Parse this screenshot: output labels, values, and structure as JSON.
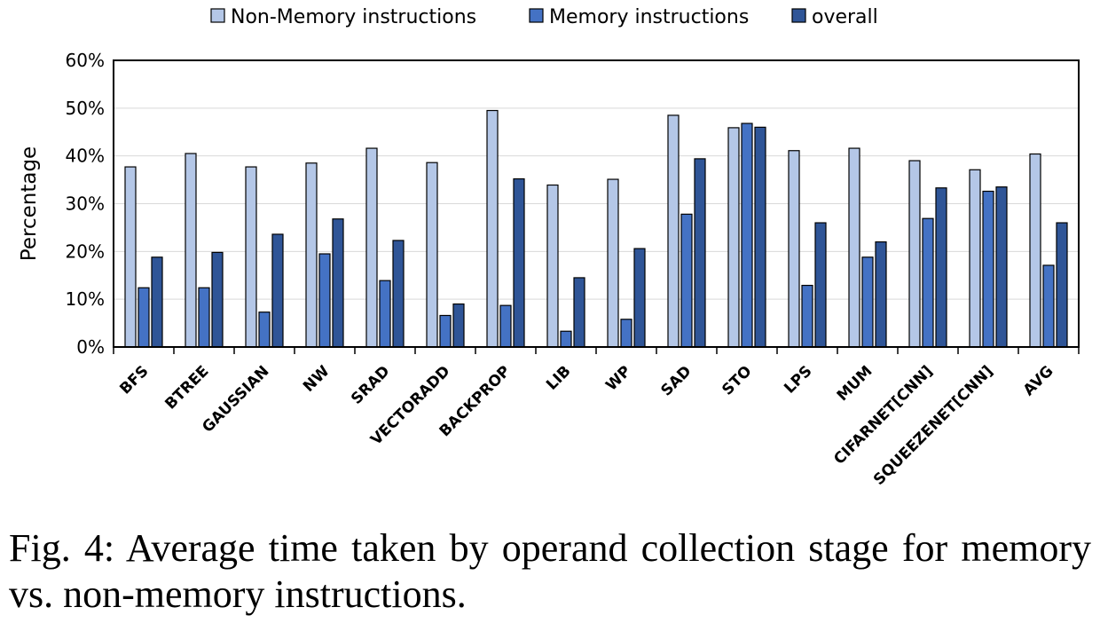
{
  "chart_data": {
    "type": "bar",
    "title": "",
    "xlabel": "",
    "ylabel": "Percentage",
    "ylim": [
      0,
      60
    ],
    "yticks": [
      "0%",
      "10%",
      "20%",
      "30%",
      "40%",
      "50%",
      "60%"
    ],
    "grid": true,
    "legend_position": "top",
    "categories": [
      "BFS",
      "BTREE",
      "GAUSSIAN",
      "NW",
      "SRAD",
      "VECTORADD",
      "BACKPROP",
      "LIB",
      "WP",
      "SAD",
      "STO",
      "LPS",
      "MUM",
      "CIFARNET[CNN]",
      "SQUEEZENET[CNN]",
      "AVG"
    ],
    "series": [
      {
        "name": "Non-Memory instructions",
        "color": "#b4c7e7",
        "values": [
          37.7,
          40.5,
          37.7,
          38.5,
          41.6,
          38.6,
          49.5,
          33.9,
          35.1,
          48.5,
          45.9,
          41.1,
          41.6,
          39.0,
          37.1,
          40.4
        ]
      },
      {
        "name": "Memory instructions",
        "color": "#4472c4",
        "values": [
          12.4,
          12.4,
          7.3,
          19.5,
          13.9,
          6.6,
          8.7,
          3.3,
          5.8,
          27.8,
          46.8,
          12.9,
          18.8,
          26.9,
          32.6,
          17.1
        ]
      },
      {
        "name": "overall",
        "color": "#2f5597",
        "values": [
          18.8,
          19.8,
          23.6,
          26.8,
          22.3,
          9.0,
          35.2,
          14.5,
          20.6,
          39.4,
          46.0,
          26.0,
          22.0,
          33.3,
          33.5,
          26.0
        ]
      }
    ]
  },
  "caption": "Fig. 4: Average time taken by operand collection stage for memory vs. non-memory instructions."
}
